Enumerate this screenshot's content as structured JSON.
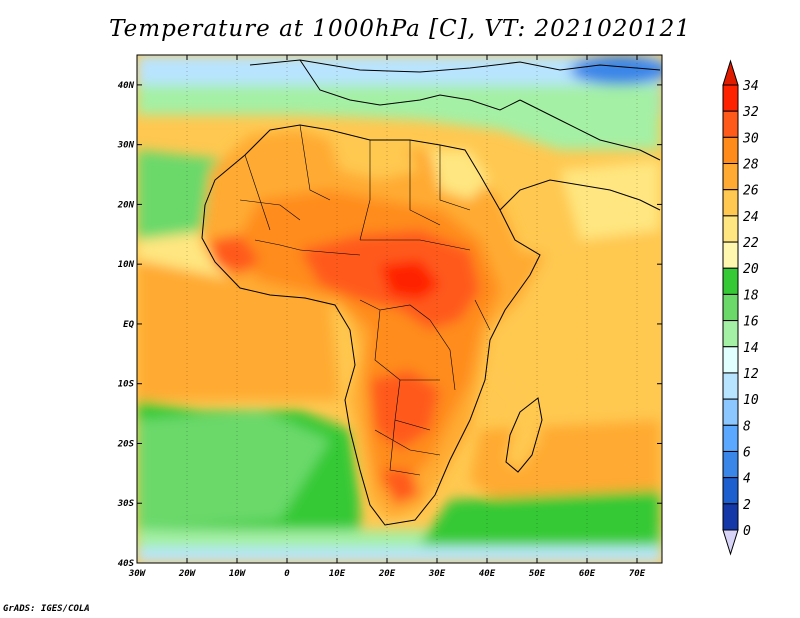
{
  "title": "Temperature at 1000hPa [C], VT: 2021020121",
  "credit": "GrADS: IGES/COLA",
  "map": {
    "lon_range": [
      -30,
      75
    ],
    "lat_range": [
      -40,
      45
    ],
    "lon_ticks": [
      "30W",
      "20W",
      "10W",
      "0",
      "10E",
      "20E",
      "30E",
      "40E",
      "50E",
      "60E",
      "70E"
    ],
    "lat_ticks": [
      "40N",
      "30N",
      "20N",
      "10N",
      "EQ",
      "10S",
      "20S",
      "30S",
      "40S"
    ]
  },
  "colorbar": {
    "labels": [
      "34",
      "32",
      "30",
      "28",
      "26",
      "24",
      "22",
      "20",
      "18",
      "16",
      "14",
      "12",
      "10",
      "8",
      "6",
      "4",
      "2",
      "0"
    ],
    "colors": [
      "#ff2200",
      "#ff5a1a",
      "#ff8c1a",
      "#ffaa33",
      "#ffc850",
      "#ffe680",
      "#fff6b0",
      "#36c936",
      "#6ad96a",
      "#a4f0a4",
      "#e2ffff",
      "#b8e4ff",
      "#8cc8ff",
      "#5aa8ff",
      "#3a86e8",
      "#1e5fd0",
      "#1438a8",
      "#0a1a78",
      "#d8d4f8"
    ],
    "top_color": "#e01c00",
    "bottom_color": "#d8d4f8"
  }
}
